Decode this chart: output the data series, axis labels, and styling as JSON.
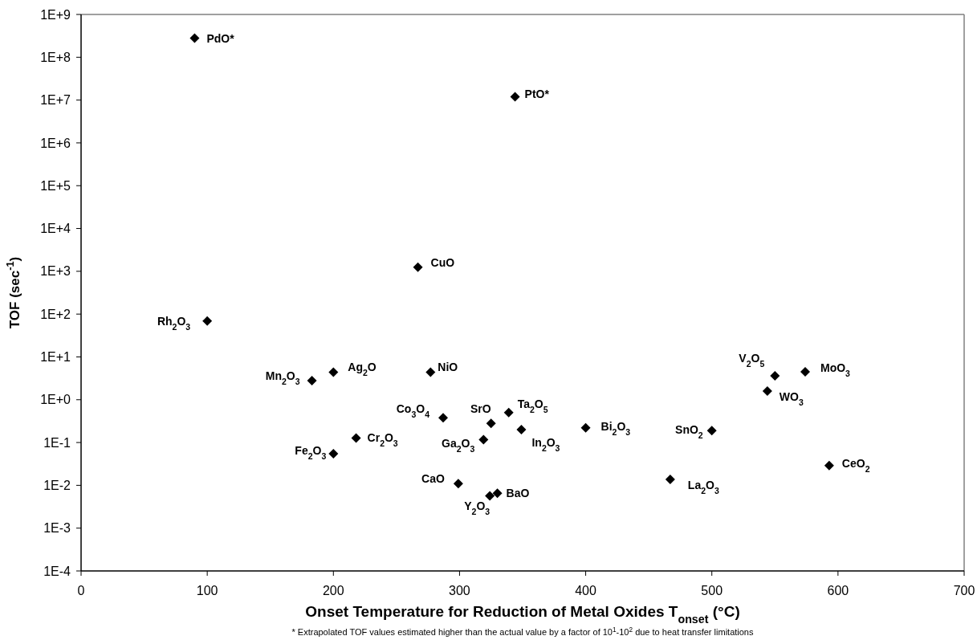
{
  "chart_data": {
    "type": "scatter",
    "xlabel": "Onset Temperature for Reduction of Metal Oxides T$_{onset}$ (°C)",
    "ylabel": "TOF (sec$^{-1}$)",
    "x": [
      90,
      344,
      267,
      100,
      183,
      200,
      277,
      287,
      325,
      339,
      349,
      319,
      218,
      200,
      299,
      324,
      330,
      400,
      500,
      467,
      593,
      550,
      574,
      544
    ],
    "values": [
      280000000,
      12000000,
      1250,
      69,
      2.8,
      4.4,
      4.4,
      0.38,
      0.28,
      0.5,
      0.2,
      0.117,
      0.127,
      0.055,
      0.011,
      0.0057,
      0.0065,
      0.22,
      0.19,
      0.0138,
      0.029,
      3.6,
      4.5,
      1.6
    ],
    "color": "#000000",
    "marker": "diamond",
    "log": "y",
    "grid": false,
    "xlim": [
      0,
      700
    ],
    "xticks": [
      0,
      100,
      200,
      300,
      400,
      500,
      600,
      700
    ],
    "ylim": [
      0.0001,
      1000000000
    ],
    "yticks": [
      {
        "value": 0.0001,
        "label": "1E-4"
      },
      {
        "value": 0.001,
        "label": "1E-3"
      },
      {
        "value": 0.01,
        "label": "1E-2"
      },
      {
        "value": 0.1,
        "label": "1E-1"
      },
      {
        "value": 1,
        "label": "1E+0"
      },
      {
        "value": 10,
        "label": "1E+1"
      },
      {
        "value": 100,
        "label": "1E+2"
      },
      {
        "value": 1000,
        "label": "1E+3"
      },
      {
        "value": 10000,
        "label": "1E+4"
      },
      {
        "value": 100000,
        "label": "1E+5"
      },
      {
        "value": 1000000,
        "label": "1E+6"
      },
      {
        "value": 10000000,
        "label": "1E+7"
      },
      {
        "value": 100000000,
        "label": "1E+8"
      },
      {
        "value": 1000000000,
        "label": "1E+9"
      }
    ],
    "annotations": [
      {
        "text": "PdO*",
        "x": 90,
        "y": 280000000
      },
      {
        "text": "PtO*",
        "x": 344,
        "y": 12000000
      },
      {
        "text": "CuO",
        "x": 267,
        "y": 1250
      },
      {
        "text": "Rh$_{2}$O$_{3}$",
        "x": 100,
        "y": 69
      },
      {
        "text": "Mn$_{2}$O$_{3}$",
        "x": 183,
        "y": 2.8
      },
      {
        "text": "Ag$_{2}$O",
        "x": 200,
        "y": 4.4
      },
      {
        "text": "NiO",
        "x": 277,
        "y": 4.4
      },
      {
        "text": "Co$_{3}$O$_{4}$",
        "x": 287,
        "y": 0.38
      },
      {
        "text": "SrO",
        "x": 325,
        "y": 0.28
      },
      {
        "text": "Ta$_{2}$O$_{5}$",
        "x": 339,
        "y": 0.5
      },
      {
        "text": "In$_{2}$O$_{3}$",
        "x": 349,
        "y": 0.2
      },
      {
        "text": "Ga$_{2}$O$_{3}$",
        "x": 319,
        "y": 0.117
      },
      {
        "text": "Cr$_{2}$O$_{3}$",
        "x": 218,
        "y": 0.127
      },
      {
        "text": "Fe$_{2}$O$_{3}$",
        "x": 200,
        "y": 0.055
      },
      {
        "text": "CaO",
        "x": 299,
        "y": 0.011
      },
      {
        "text": "Y$_{2}$O$_{3}$",
        "x": 324,
        "y": 0.0057
      },
      {
        "text": "BaO",
        "x": 330,
        "y": 0.0065
      },
      {
        "text": "Bi$_{2}$O$_{3}$",
        "x": 400,
        "y": 0.22
      },
      {
        "text": "SnO$_{2}$",
        "x": 500,
        "y": 0.19
      },
      {
        "text": "La$_{2}$O$_{3}$",
        "x": 467,
        "y": 0.0138
      },
      {
        "text": "CeO$_{2}$",
        "x": 593,
        "y": 0.029
      },
      {
        "text": "V$_{2}$O$_{5}$",
        "x": 550,
        "y": 3.6
      },
      {
        "text": "MoO$_{3}$",
        "x": 574,
        "y": 4.5
      },
      {
        "text": "WO$_{3}$",
        "x": 544,
        "y": 1.6
      },
      "* Extrapolated TOF values estimated higher than the actual value by a factor of 10$^{1}$-10$^{2}$ due to heat transfer limitations"
    ]
  }
}
